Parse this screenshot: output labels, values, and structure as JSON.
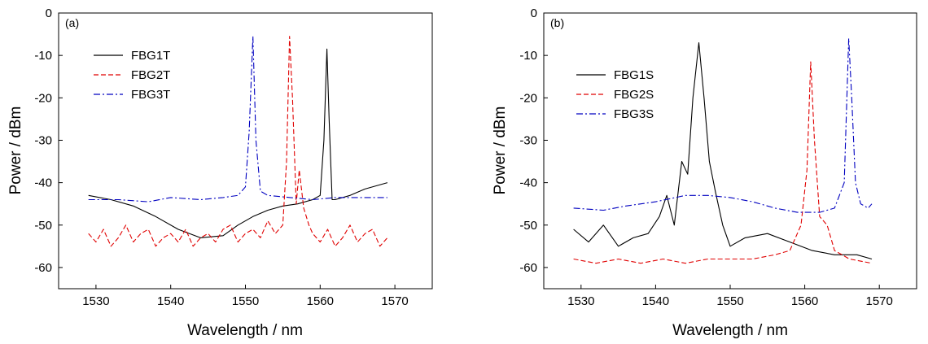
{
  "chart_data": [
    {
      "type": "line",
      "panel_label": "(a)",
      "xlabel": "Wavelength / nm",
      "ylabel": "Power / dBm",
      "xlim": [
        1525,
        1575
      ],
      "ylim": [
        -65,
        0
      ],
      "xticks": [
        1530,
        1540,
        1550,
        1560,
        1570
      ],
      "yticks": [
        0,
        -10,
        -20,
        -30,
        -40,
        -50,
        -60
      ],
      "grid": false,
      "legend_position": "top-left",
      "series": [
        {
          "name": "FBG1T",
          "color": "#000000",
          "dash": "solid",
          "x": [
            1529,
            1532,
            1535,
            1538,
            1541,
            1544,
            1547,
            1549,
            1551,
            1553,
            1555,
            1557,
            1559,
            1560,
            1560.5,
            1560.9,
            1561.2,
            1561.6,
            1562,
            1564,
            1566,
            1569
          ],
          "y": [
            -43,
            -44,
            -45.5,
            -48,
            -51,
            -53,
            -52.5,
            -50,
            -48,
            -46.5,
            -45.5,
            -45,
            -44,
            -43,
            -30,
            -8.5,
            -25,
            -44,
            -44,
            -43,
            -41.5,
            -40
          ]
        },
        {
          "name": "FBG2T",
          "color": "#e00000",
          "dash": "dashed",
          "x": [
            1529,
            1530,
            1531,
            1532,
            1533,
            1534,
            1535,
            1536,
            1537,
            1538,
            1539,
            1540,
            1541,
            1542,
            1543,
            1544,
            1545,
            1546,
            1547,
            1548,
            1549,
            1550,
            1551,
            1552,
            1553,
            1554,
            1555,
            1555.5,
            1555.9,
            1556.3,
            1556.8,
            1557.2,
            1557.8,
            1558.5,
            1559,
            1560,
            1561,
            1562,
            1563,
            1564,
            1565,
            1566,
            1567,
            1568,
            1569
          ],
          "y": [
            -52,
            -54,
            -51,
            -55,
            -53,
            -50,
            -54,
            -52,
            -51,
            -55,
            -53,
            -52,
            -54,
            -51,
            -55,
            -53,
            -52,
            -54,
            -51,
            -50,
            -54,
            -52,
            -51,
            -53,
            -49,
            -52,
            -50,
            -35,
            -5.5,
            -20,
            -45,
            -37,
            -46,
            -50,
            -52,
            -54,
            -51,
            -55,
            -53,
            -50,
            -54,
            -52,
            -51,
            -55,
            -53
          ]
        },
        {
          "name": "FBG3T",
          "color": "#0000c0",
          "dash": "dashdot",
          "x": [
            1529,
            1533,
            1537,
            1540,
            1544,
            1547,
            1549,
            1550,
            1550.5,
            1551,
            1551.4,
            1552,
            1553,
            1556,
            1559,
            1562,
            1565,
            1569
          ],
          "y": [
            -44,
            -44,
            -44.5,
            -43.5,
            -44,
            -43.5,
            -43,
            -41,
            -28,
            -5.5,
            -30,
            -42,
            -43,
            -43.5,
            -44,
            -43.5,
            -43.5,
            -43.5
          ]
        }
      ]
    },
    {
      "type": "line",
      "panel_label": "(b)",
      "xlabel": "Wavelength / nm",
      "ylabel": "Power / dBm",
      "xlim": [
        1525,
        1575
      ],
      "ylim": [
        -65,
        0
      ],
      "xticks": [
        1530,
        1540,
        1550,
        1560,
        1570
      ],
      "yticks": [
        0,
        -10,
        -20,
        -30,
        -40,
        -50,
        -60
      ],
      "grid": false,
      "legend_position": "top-left",
      "series": [
        {
          "name": "FBG1S",
          "color": "#000000",
          "dash": "solid",
          "x": [
            1529,
            1531,
            1533,
            1535,
            1537,
            1539,
            1540.5,
            1541.5,
            1542.5,
            1543.5,
            1544.3,
            1545,
            1545.8,
            1546.5,
            1547.2,
            1548,
            1549,
            1550,
            1552,
            1555,
            1558,
            1561,
            1564,
            1567,
            1569
          ],
          "y": [
            -51,
            -54,
            -50,
            -55,
            -53,
            -52,
            -48,
            -43,
            -50,
            -35,
            -38,
            -20,
            -7,
            -20,
            -35,
            -42,
            -50,
            -55,
            -53,
            -52,
            -54,
            -56,
            -57,
            -57,
            -58
          ]
        },
        {
          "name": "FBG2S",
          "color": "#e00000",
          "dash": "dashed",
          "x": [
            1529,
            1532,
            1535,
            1538,
            1541,
            1544,
            1547,
            1550,
            1553,
            1556,
            1558,
            1559.5,
            1560.3,
            1560.8,
            1561.3,
            1562,
            1563,
            1564,
            1566,
            1569
          ],
          "y": [
            -58,
            -59,
            -58,
            -59,
            -58,
            -59,
            -58,
            -58,
            -58,
            -57,
            -56,
            -50,
            -37,
            -11.5,
            -30,
            -48,
            -50,
            -56,
            -58,
            -59
          ]
        },
        {
          "name": "FBG3S",
          "color": "#0000c0",
          "dash": "dashdot",
          "x": [
            1529,
            1533,
            1536,
            1540,
            1544,
            1547,
            1550,
            1553,
            1556,
            1559,
            1562,
            1564,
            1565.3,
            1565.9,
            1566.3,
            1566.8,
            1567.5,
            1568.5,
            1569
          ],
          "y": [
            -46,
            -46.5,
            -45.5,
            -44.5,
            -43,
            -43,
            -43.5,
            -44.5,
            -46,
            -47,
            -47,
            -46,
            -40,
            -6,
            -20,
            -40,
            -45,
            -46,
            -45
          ]
        }
      ]
    }
  ]
}
